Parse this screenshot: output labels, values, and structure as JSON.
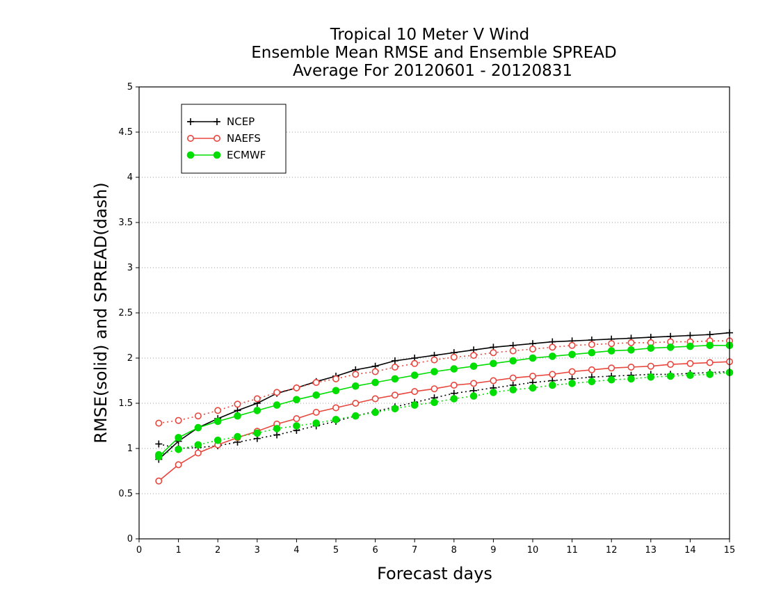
{
  "chart_data": {
    "type": "line",
    "title_lines": [
      "Tropical 10 Meter V Wind",
      "Ensemble Mean RMSE and Ensemble SPREAD",
      "Average For 20120601 - 20120831"
    ],
    "xlabel": "Forecast days",
    "ylabel": "RMSE(solid) and SPREAD(dash)",
    "xlim": [
      0,
      15
    ],
    "ylim": [
      0,
      5
    ],
    "x_ticks": [
      "0",
      "1",
      "2",
      "3",
      "4",
      "5",
      "6",
      "7",
      "8",
      "9",
      "10",
      "11",
      "12",
      "13",
      "14",
      "15"
    ],
    "y_ticks": [
      "0",
      "0.5",
      "1",
      "1.5",
      "2",
      "2.5",
      "3",
      "3.5",
      "4",
      "4.5",
      "5"
    ],
    "grid": "horizontal dotted",
    "legend_position": "top-left",
    "x": [
      0.5,
      1,
      1.5,
      2,
      2.5,
      3,
      3.5,
      4,
      4.5,
      5,
      5.5,
      6,
      6.5,
      7,
      7.5,
      8,
      8.5,
      9,
      9.5,
      10,
      10.5,
      11,
      11.5,
      12,
      12.5,
      13,
      13.5,
      14,
      14.5,
      15
    ],
    "series": [
      {
        "name": "NCEP",
        "color": "#000000",
        "marker": "plus",
        "rmse": [
          0.88,
          1.08,
          1.23,
          1.33,
          1.42,
          1.5,
          1.61,
          1.67,
          1.74,
          1.8,
          1.87,
          1.91,
          1.97,
          2.0,
          2.03,
          2.06,
          2.09,
          2.12,
          2.14,
          2.16,
          2.18,
          2.19,
          2.2,
          2.21,
          2.22,
          2.23,
          2.24,
          2.25,
          2.26,
          2.28
        ],
        "spread": [
          1.05,
          1.0,
          1.01,
          1.03,
          1.07,
          1.11,
          1.15,
          1.2,
          1.25,
          1.3,
          1.36,
          1.41,
          1.46,
          1.51,
          1.56,
          1.61,
          1.64,
          1.67,
          1.7,
          1.73,
          1.75,
          1.77,
          1.79,
          1.8,
          1.81,
          1.82,
          1.82,
          1.83,
          1.84,
          1.85
        ]
      },
      {
        "name": "NAEFS",
        "color": "#e8453c",
        "marker": "open-circle",
        "rmse": [
          0.64,
          0.82,
          0.95,
          1.04,
          1.12,
          1.19,
          1.27,
          1.33,
          1.4,
          1.45,
          1.5,
          1.55,
          1.59,
          1.63,
          1.66,
          1.7,
          1.72,
          1.75,
          1.78,
          1.8,
          1.82,
          1.85,
          1.87,
          1.89,
          1.9,
          1.91,
          1.93,
          1.94,
          1.95,
          1.96
        ],
        "spread": [
          1.28,
          1.31,
          1.36,
          1.42,
          1.49,
          1.55,
          1.62,
          1.67,
          1.73,
          1.77,
          1.82,
          1.85,
          1.9,
          1.94,
          1.98,
          2.01,
          2.03,
          2.06,
          2.08,
          2.1,
          2.12,
          2.14,
          2.15,
          2.16,
          2.17,
          2.17,
          2.18,
          2.18,
          2.19,
          2.19
        ]
      },
      {
        "name": "ECMWF",
        "color": "#00dd00",
        "marker": "filled-circle",
        "rmse": [
          0.91,
          1.12,
          1.23,
          1.3,
          1.36,
          1.42,
          1.48,
          1.54,
          1.59,
          1.64,
          1.69,
          1.73,
          1.77,
          1.81,
          1.85,
          1.88,
          1.91,
          1.94,
          1.97,
          2.0,
          2.02,
          2.04,
          2.06,
          2.08,
          2.09,
          2.11,
          2.12,
          2.13,
          2.14,
          2.14
        ],
        "spread": [
          0.93,
          0.99,
          1.04,
          1.09,
          1.13,
          1.17,
          1.22,
          1.25,
          1.28,
          1.32,
          1.36,
          1.4,
          1.44,
          1.48,
          1.51,
          1.55,
          1.58,
          1.62,
          1.65,
          1.67,
          1.7,
          1.72,
          1.74,
          1.76,
          1.77,
          1.79,
          1.8,
          1.81,
          1.82,
          1.84
        ]
      }
    ]
  }
}
